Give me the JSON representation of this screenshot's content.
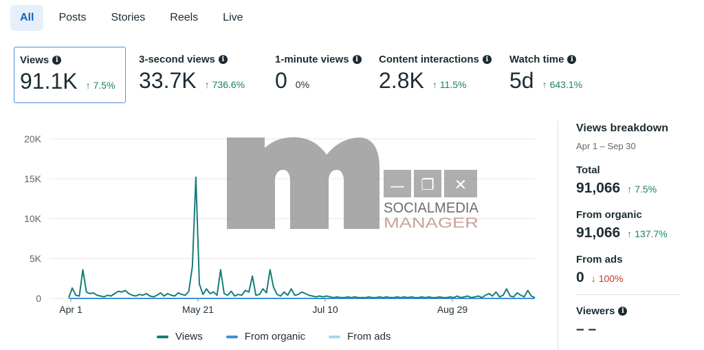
{
  "tabs": [
    {
      "label": "All",
      "active": true
    },
    {
      "label": "Posts",
      "active": false
    },
    {
      "label": "Stories",
      "active": false
    },
    {
      "label": "Reels",
      "active": false
    },
    {
      "label": "Live",
      "active": false
    }
  ],
  "metrics": [
    {
      "label": "Views",
      "value": "91.1K",
      "change": "7.5%",
      "direction": "up",
      "selected": true
    },
    {
      "label": "3-second views",
      "value": "33.7K",
      "change": "736.6%",
      "direction": "up",
      "selected": false
    },
    {
      "label": "1-minute views",
      "value": "0",
      "change": "0%",
      "direction": "none",
      "selected": false
    },
    {
      "label": "Content interactions",
      "value": "2.8K",
      "change": "11.5%",
      "direction": "up",
      "selected": false
    },
    {
      "label": "Watch time",
      "value": "5d",
      "change": "643.1%",
      "direction": "up",
      "selected": false
    }
  ],
  "chart_data": {
    "type": "line",
    "y_ticks": [
      "20K",
      "15K",
      "10K",
      "5K",
      "0"
    ],
    "x_ticks": [
      "Apr 1",
      "May 21",
      "Jul 10",
      "Aug 29"
    ],
    "ylim": [
      0,
      20000
    ],
    "grid": true,
    "legend_position": "bottom",
    "series": [
      {
        "name": "Views",
        "color": "#147c78",
        "values": [
          100,
          1300,
          400,
          300,
          3600,
          800,
          600,
          700,
          400,
          300,
          200,
          400,
          300,
          600,
          900,
          800,
          1000,
          600,
          400,
          300,
          500,
          400,
          600,
          300,
          200,
          400,
          700,
          300,
          600,
          400,
          300,
          700,
          500,
          400,
          900,
          4000,
          15200,
          1800,
          500,
          1200,
          600,
          800,
          400,
          3600,
          600,
          400,
          900,
          300,
          500,
          400,
          1000,
          800,
          2800,
          400,
          500,
          1200,
          700,
          3600,
          1400,
          500,
          300,
          800,
          400,
          1200,
          400,
          500,
          800,
          600,
          400,
          300,
          200,
          300,
          200,
          300,
          200,
          100,
          200,
          100,
          100,
          200,
          100,
          200,
          100,
          100,
          100,
          200,
          100,
          100,
          200,
          100,
          200,
          100,
          100,
          200,
          100,
          200,
          100,
          200,
          100,
          100,
          200,
          100,
          200,
          100,
          100,
          200,
          100,
          100,
          200,
          100,
          300,
          100,
          200,
          300,
          100,
          200,
          300,
          100,
          400,
          600,
          300,
          800,
          200,
          400,
          1200,
          300,
          200,
          700,
          400,
          200,
          1000,
          300,
          100
        ]
      },
      {
        "name": "From organic",
        "color": "#3d8fd9",
        "values": []
      },
      {
        "name": "From ads",
        "color": "#a6d6f2",
        "values": []
      }
    ]
  },
  "breakdown": {
    "title": "Views breakdown",
    "date_range": "Apr 1 – Sep 30",
    "total_label": "Total",
    "total_value": "91,066",
    "total_change": "7.5%",
    "organic_label": "From organic",
    "organic_value": "91,066",
    "organic_change": "137.7%",
    "ads_label": "From ads",
    "ads_value": "0",
    "ads_change": "100%",
    "viewers_label": "Viewers",
    "viewers_value": "– –"
  },
  "watermark": {
    "line1": "SOCIALMEDIA",
    "line2": "MANAGER"
  },
  "colors": {
    "accent": "#0a66c2",
    "up": "#1a7f64",
    "down": "#c0392b",
    "views_line": "#147c78"
  },
  "icons": {
    "info": "i",
    "arrow_up": "↑",
    "arrow_down": "↓",
    "minimize": "—",
    "restore": "❐",
    "close": "✕"
  }
}
